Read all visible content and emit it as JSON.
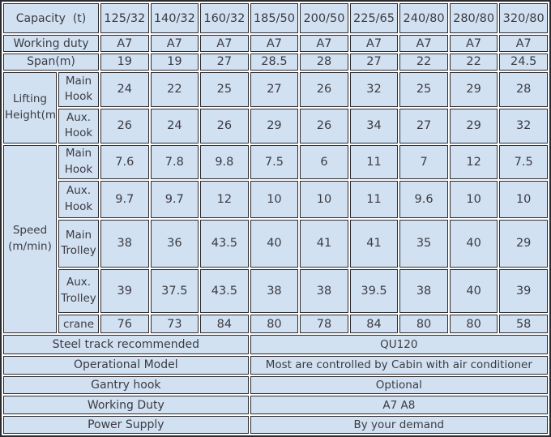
{
  "colors": {
    "cell_background": "#d2e1f1",
    "grid_border": "#2b2b30",
    "text": "#3b3b43",
    "gap_background": "#ffffff"
  },
  "capacity": {
    "label": "Capacity  (t)",
    "values": [
      "125/32",
      "140/32",
      "160/32",
      "185/50",
      "200/50",
      "225/65",
      "240/80",
      "280/80",
      "320/80"
    ]
  },
  "working_duty": {
    "label": "Working duty",
    "values": [
      "A7",
      "A7",
      "A7",
      "A7",
      "A7",
      "A7",
      "A7",
      "A7",
      "A7"
    ]
  },
  "span": {
    "label": "Span(m)",
    "values": [
      "19",
      "19",
      "27",
      "28.5",
      "28",
      "27",
      "22",
      "22",
      "24.5"
    ]
  },
  "lifting_height": {
    "label": "Lifting\nHeight(m)",
    "main_hook": {
      "label": "Main\nHook",
      "values": [
        "24",
        "22",
        "25",
        "27",
        "26",
        "32",
        "25",
        "29",
        "28"
      ]
    },
    "aux_hook": {
      "label": "Aux.\nHook",
      "values": [
        "26",
        "24",
        "26",
        "29",
        "26",
        "34",
        "27",
        "29",
        "32"
      ]
    }
  },
  "speed": {
    "label": "Speed\n(m/min)",
    "main_hook": {
      "label": "Main\nHook",
      "values": [
        "7.6",
        "7.8",
        "9.8",
        "7.5",
        "6",
        "11",
        "7",
        "12",
        "7.5"
      ]
    },
    "aux_hook": {
      "label": "Aux.\nHook",
      "values": [
        "9.7",
        "9.7",
        "12",
        "10",
        "10",
        "11",
        "9.6",
        "10",
        "10"
      ]
    },
    "main_trolley": {
      "label": "Main\nTrolley",
      "values": [
        "38",
        "36",
        "43.5",
        "40",
        "41",
        "41",
        "35",
        "40",
        "29"
      ]
    },
    "aux_trolley": {
      "label": "Aux.\nTrolley",
      "values": [
        "39",
        "37.5",
        "43.5",
        "38",
        "38",
        "39.5",
        "38",
        "40",
        "39"
      ]
    },
    "crane": {
      "label": "crane",
      "values": [
        "76",
        "73",
        "84",
        "80",
        "78",
        "84",
        "80",
        "80",
        "58"
      ]
    }
  },
  "footer": {
    "steel_track": {
      "label": "Steel track recommended",
      "value": "QU120"
    },
    "operational_model": {
      "label": "Operational Model",
      "value": "Most are controlled by Cabin with air conditioner"
    },
    "gantry_hook": {
      "label": "Gantry hook",
      "value": "Optional"
    },
    "working_duty": {
      "label": "Working Duty",
      "value": "A7 A8"
    },
    "power_supply": {
      "label": "Power Supply",
      "value": "By your demand"
    }
  }
}
